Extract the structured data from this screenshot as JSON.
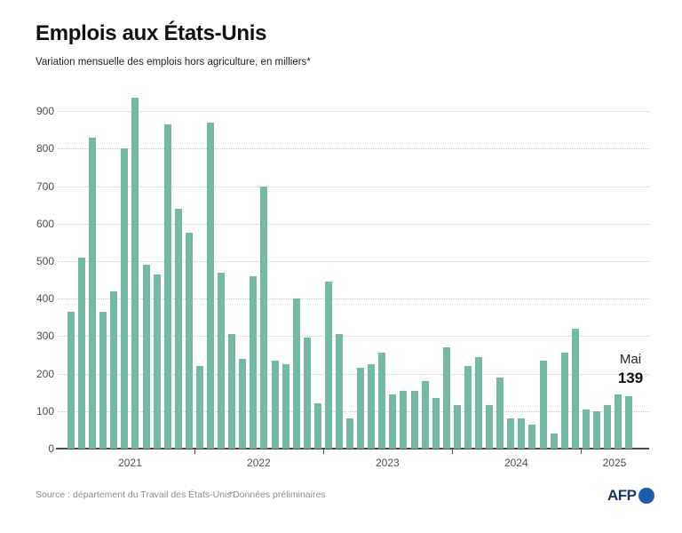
{
  "header": {
    "title": "Emplois aux États-Unis",
    "subtitle": "Variation mensuelle des emplois hors agriculture, en milliers*"
  },
  "chart_data": {
    "type": "bar",
    "title": "Emplois aux États-Unis",
    "xlabel": "",
    "ylabel": "Variation mensuelle des emplois hors agriculture, en milliers",
    "ylim": [
      0,
      950
    ],
    "yticks": [
      0,
      100,
      200,
      300,
      400,
      500,
      600,
      700,
      800,
      900
    ],
    "grid": "horizontal dotted",
    "legend": "none",
    "bar_color": "#74b8a5",
    "start_month": "2021-01",
    "end_month": "2025-05",
    "series": [
      {
        "year": "2021",
        "values": [
          365,
          510,
          830,
          365,
          420,
          800,
          935,
          490,
          465,
          865,
          640,
          575
        ]
      },
      {
        "year": "2022",
        "values": [
          220,
          870,
          470,
          305,
          240,
          460,
          700,
          235,
          225,
          400,
          295,
          120
        ]
      },
      {
        "year": "2023",
        "values": [
          445,
          305,
          80,
          215,
          225,
          255,
          145,
          155,
          155,
          180,
          135,
          270
        ]
      },
      {
        "year": "2024",
        "values": [
          115,
          220,
          245,
          115,
          190,
          80,
          80,
          65,
          235,
          40,
          255,
          320
        ]
      },
      {
        "year": "2025",
        "values": [
          105,
          100,
          115,
          145,
          139
        ]
      }
    ],
    "annotation": {
      "label": "Mai",
      "value": "139"
    }
  },
  "footer": {
    "source": "Source : département du Travail des États-Unis",
    "note": "*Données préliminaires",
    "logo": "AFP"
  }
}
